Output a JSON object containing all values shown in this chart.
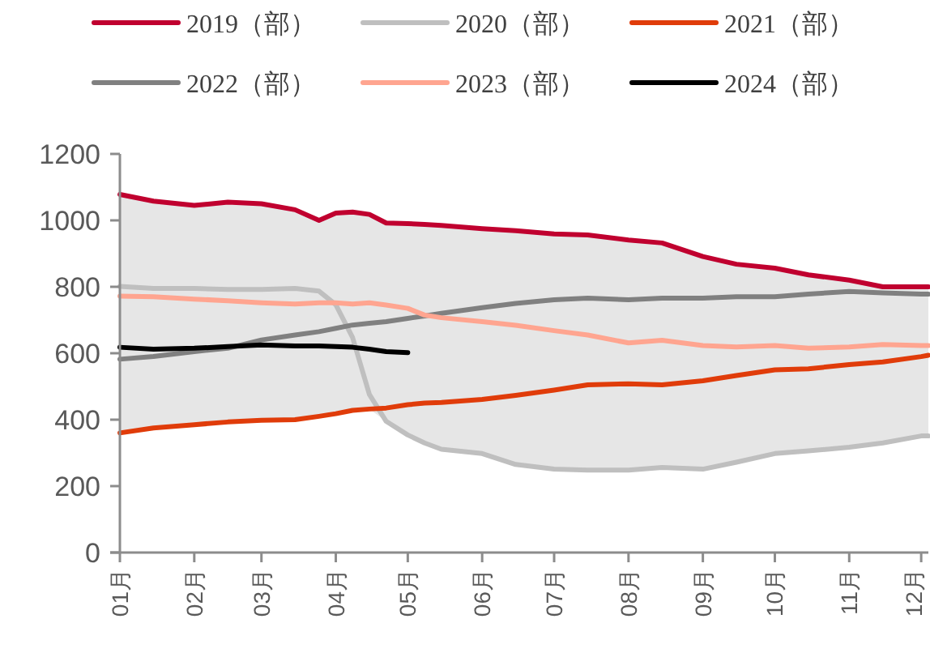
{
  "chart_data": {
    "type": "line",
    "legend": "top",
    "grid": false,
    "marker": "none",
    "line_style": "solid",
    "x": [
      "--01-01",
      "--01-15",
      "--02-01",
      "--02-15",
      "--03-01",
      "--03-15",
      "--03-25",
      "--04-01",
      "--04-08",
      "--04-15",
      "--04-22",
      "--05-01",
      "--05-08",
      "--05-15",
      "--06-01",
      "--06-15",
      "--07-01",
      "--07-15",
      "--08-01",
      "--08-15",
      "--09-01",
      "--09-15",
      "--10-01",
      "--10-15",
      "--11-01",
      "--11-15",
      "--12-01",
      "--12-04"
    ],
    "xlim": [
      "--01-01",
      "--12-04"
    ],
    "xticks": [
      {
        "value": "--01-01",
        "label": "01月"
      },
      {
        "value": "--02-01",
        "label": "02月"
      },
      {
        "value": "--03-01",
        "label": "03月"
      },
      {
        "value": "--04-01",
        "label": "04月"
      },
      {
        "value": "--05-01",
        "label": "05月"
      },
      {
        "value": "--06-01",
        "label": "06月"
      },
      {
        "value": "--07-01",
        "label": "07月"
      },
      {
        "value": "--08-01",
        "label": "08月"
      },
      {
        "value": "--09-01",
        "label": "09月"
      },
      {
        "value": "--10-01",
        "label": "10月"
      },
      {
        "value": "--11-01",
        "label": "11月"
      },
      {
        "value": "--12-01",
        "label": "12月"
      }
    ],
    "ylim": [
      0,
      1200
    ],
    "yticks": [
      0,
      200,
      400,
      600,
      800,
      1000,
      1200
    ],
    "series": [
      {
        "name": "2019（部）",
        "color": "#c0002f",
        "values": [
          1078,
          1058,
          1045,
          1055,
          1050,
          1032,
          1000,
          1022,
          1025,
          1018,
          992,
          990,
          988,
          985,
          975,
          969,
          959,
          956,
          941,
          932,
          891,
          868,
          856,
          836,
          820,
          800,
          800,
          800
        ],
        "upper": [
          1078,
          1058,
          1045,
          1055,
          1050,
          1032,
          1000,
          1022,
          1025,
          1018,
          992,
          990,
          988,
          985,
          975,
          969,
          959,
          956,
          941,
          932,
          891,
          868,
          856,
          836,
          820,
          800,
          800,
          800
        ],
        "lower": [
          360,
          375,
          385,
          393,
          398,
          400,
          410,
          418,
          428,
          432,
          395,
          354,
          330,
          311,
          298,
          265,
          251,
          248,
          248,
          256,
          251,
          272,
          298,
          306,
          317,
          330,
          351,
          351
        ]
      },
      {
        "name": "2020（部）",
        "color": "#bfbfbf",
        "values": [
          801,
          795,
          795,
          792,
          792,
          795,
          787,
          746,
          647,
          476,
          395,
          354,
          330,
          311,
          298,
          265,
          251,
          248,
          248,
          256,
          251,
          272,
          298,
          306,
          317,
          330,
          351,
          351
        ]
      },
      {
        "name": "2021（部）",
        "color": "#e03c0a",
        "values": [
          360,
          375,
          385,
          393,
          398,
          400,
          410,
          418,
          428,
          432,
          435,
          445,
          450,
          452,
          461,
          473,
          489,
          505,
          508,
          505,
          517,
          533,
          550,
          553,
          566,
          574,
          590,
          594
        ]
      },
      {
        "name": "2022（部）",
        "color": "#808080",
        "values": [
          582,
          590,
          605,
          615,
          640,
          655,
          665,
          675,
          685,
          690,
          695,
          705,
          712,
          720,
          737,
          750,
          761,
          766,
          761,
          766,
          766,
          770,
          770,
          778,
          786,
          782,
          778,
          778
        ]
      },
      {
        "name": "2023（部）",
        "color": "#ffa590",
        "values": [
          772,
          770,
          763,
          758,
          752,
          748,
          752,
          752,
          748,
          752,
          745,
          735,
          715,
          707,
          695,
          684,
          668,
          655,
          631,
          639,
          623,
          619,
          623,
          615,
          619,
          626,
          623,
          623
        ]
      },
      {
        "name": "2024（部）",
        "color": "#000000",
        "values": [
          618,
          612,
          615,
          620,
          625,
          622,
          622,
          620,
          618,
          612,
          605,
          602,
          null,
          null,
          null,
          null,
          null,
          null,
          null,
          null,
          null,
          null,
          null,
          null,
          null,
          null,
          null,
          null
        ]
      }
    ]
  }
}
